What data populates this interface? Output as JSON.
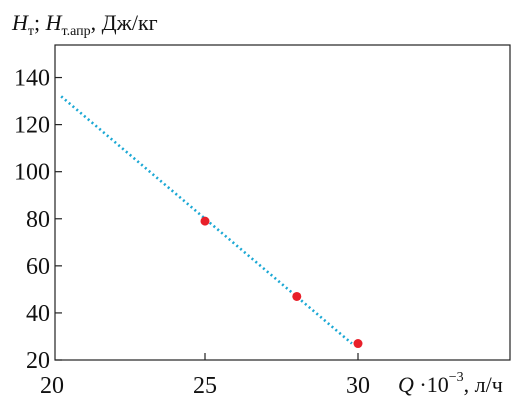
{
  "chart_data": {
    "type": "scatter",
    "title": "",
    "ylabel": {
      "var1": "H",
      "sub1": "т",
      "sep": "; ",
      "var2": "H",
      "sub2": "т.апр",
      "unit": ", Дж/кг"
    },
    "xlabel": {
      "var": "Q",
      "factor": " ·10",
      "exp": "−3",
      "unit": ", л/ч"
    },
    "xlim": [
      20,
      30
    ],
    "ylim": [
      20,
      150
    ],
    "x_ticks": [
      20,
      25,
      30
    ],
    "y_ticks": [
      20,
      40,
      60,
      80,
      100,
      120,
      140
    ],
    "grid": false,
    "series": [
      {
        "kind": "markers",
        "color": "#e8202a",
        "points": [
          {
            "x": 25,
            "y": 79
          },
          {
            "x": 28,
            "y": 47
          },
          {
            "x": 30,
            "y": 27
          }
        ]
      },
      {
        "kind": "dotted-line",
        "color": "#1ba8d4",
        "points": [
          {
            "x": 20.3,
            "y": 132
          },
          {
            "x": 29.8,
            "y": 27
          }
        ]
      }
    ]
  }
}
